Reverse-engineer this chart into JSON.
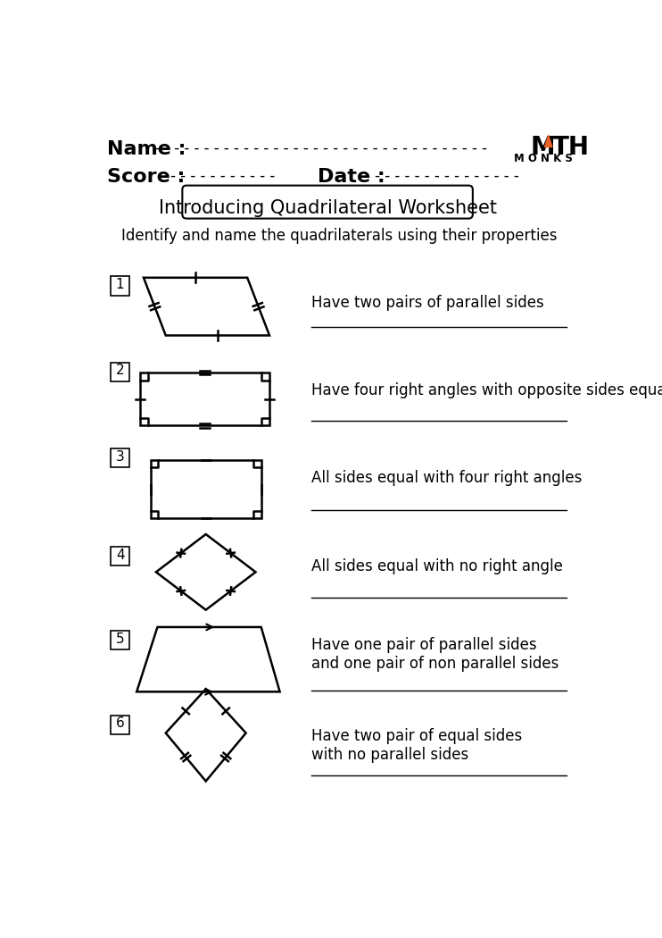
{
  "title": "Introducing Quadrilateral Worksheet",
  "subtitle": "Identify and name the quadrilaterals using their properties",
  "name_label": "Name : ",
  "score_label": "Score : ",
  "date_label": "Date : ",
  "name_dashes": "- - - - - - - - - - - - - - - - - - - - - - - - - - - - - - - - - -",
  "score_dashes": "- - - - - - - - - - - -",
  "date_dashes": "- - - - - - - - - - - - - - - -",
  "bg_color": "#ffffff",
  "text_color": "#000000",
  "orange_color": "#E8622A",
  "problems": [
    {
      "number": "1",
      "description": "Have two pairs of parallel sides"
    },
    {
      "number": "2",
      "description": "Have four right angles with opposite sides equal"
    },
    {
      "number": "3",
      "description": "All sides equal with four right angles"
    },
    {
      "number": "4",
      "description": "All sides equal with no right angle"
    },
    {
      "number": "5",
      "description": "Have one pair of parallel sides\nand one pair of non parallel sides"
    },
    {
      "number": "6",
      "description": "Have two pair of equal sides\nwith no parallel sides"
    }
  ]
}
